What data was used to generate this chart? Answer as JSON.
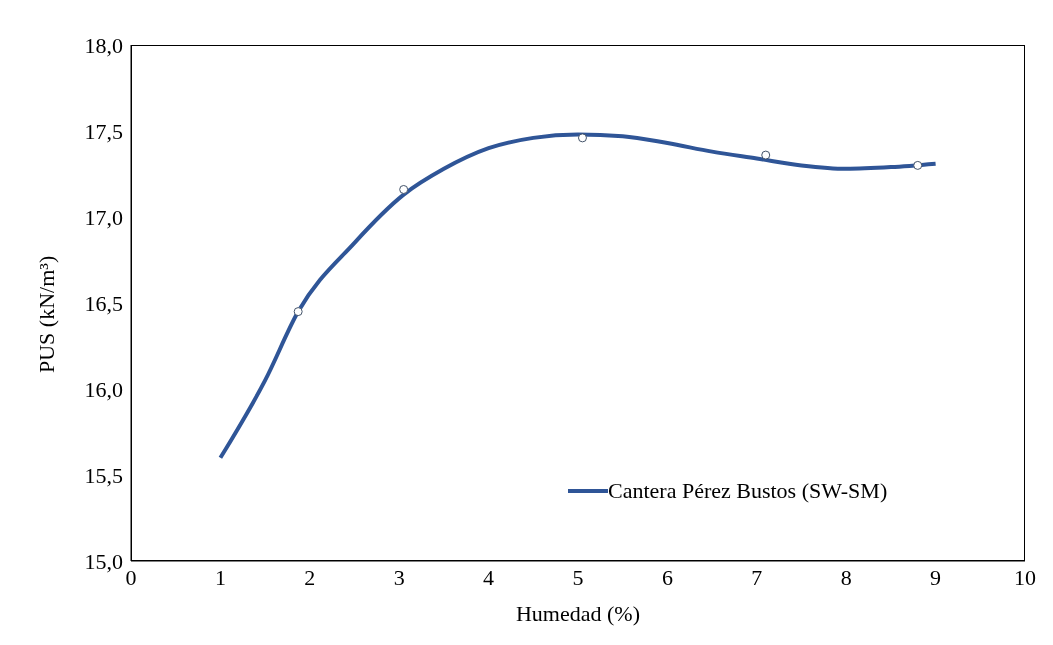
{
  "chart_data": {
    "type": "line",
    "xlabel": "Humedad (%)",
    "ylabel": "PUS (kN/m³)",
    "xlim": [
      0,
      10
    ],
    "xticks": [
      0,
      1,
      2,
      3,
      4,
      5,
      6,
      7,
      8,
      9,
      10
    ],
    "ylim": [
      15,
      18
    ],
    "yticks": [
      {
        "value": 15,
        "label": "15,0"
      },
      {
        "value": 15.5,
        "label": "15,5"
      },
      {
        "value": 16,
        "label": "16,0"
      },
      {
        "value": 16.5,
        "label": "16,5"
      },
      {
        "value": 17,
        "label": "17,0"
      },
      {
        "value": 17.5,
        "label": "17,5"
      },
      {
        "value": 18,
        "label": "18,0"
      }
    ],
    "grid": false,
    "legend": "bottom right",
    "line_style": "solid",
    "marker": "none",
    "series": [
      {
        "name": "Cantera Pérez Bustos (SW-SM)",
        "color": "#2f5597",
        "x": [
          1,
          1.5,
          1.87,
          2.5,
          3.05,
          3.5,
          4,
          4.5,
          5,
          5.5,
          6,
          6.5,
          7,
          7.5,
          8,
          8.5,
          9
        ],
        "values": [
          15.6,
          16.05,
          16.45,
          16.85,
          17.13,
          17.28,
          17.4,
          17.46,
          17.48,
          17.47,
          17.43,
          17.38,
          17.34,
          17.3,
          17.28,
          17.29,
          17.31
        ]
      },
      {
        "type": "scatter",
        "color": "#44546a",
        "marker": "circle",
        "x": [
          1.87,
          3.05,
          5.05,
          7.1,
          8.8
        ],
        "values": [
          16.45,
          17.16,
          17.46,
          17.36,
          17.3
        ]
      }
    ]
  }
}
